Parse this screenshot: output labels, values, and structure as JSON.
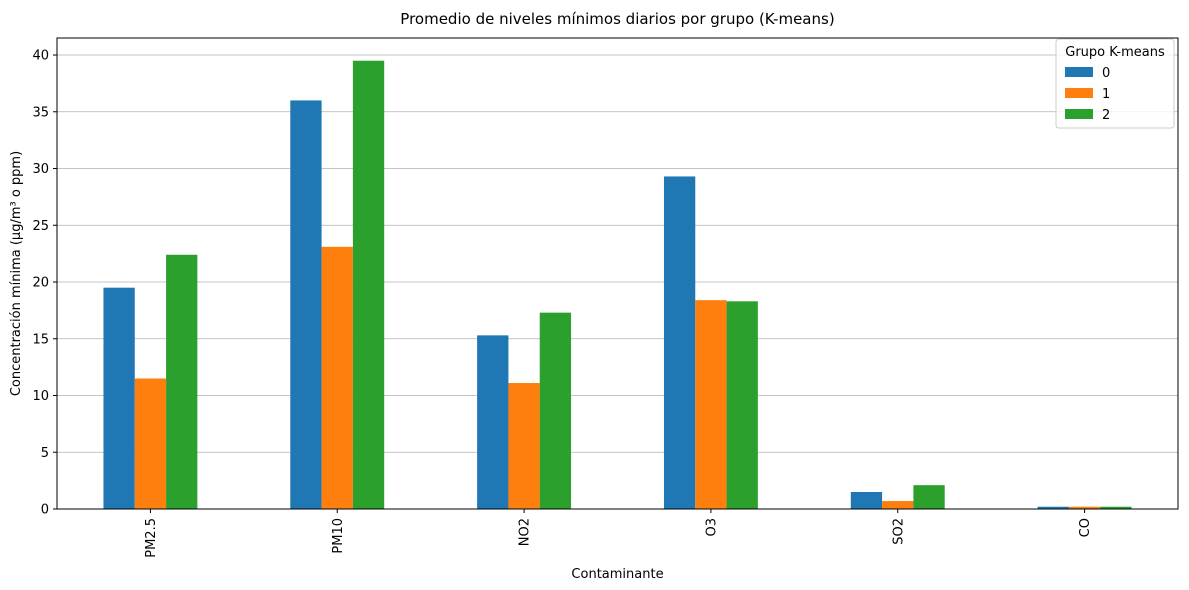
{
  "chart_data": {
    "type": "bar",
    "title": "Promedio de niveles mínimos diarios por grupo (K-means)",
    "xlabel": "Contaminante",
    "ylabel": "Concentración mínima (µg/m³ o ppm)",
    "categories": [
      "PM2.5",
      "PM10",
      "NO2",
      "O3",
      "SO2",
      "CO"
    ],
    "series": [
      {
        "name": "0",
        "color": "#1f77b4",
        "values": [
          19.5,
          36.0,
          15.3,
          29.3,
          1.5,
          0.2
        ]
      },
      {
        "name": "1",
        "color": "#ff7f0e",
        "values": [
          11.5,
          23.1,
          11.1,
          18.4,
          0.7,
          0.2
        ]
      },
      {
        "name": "2",
        "color": "#2ca02c",
        "values": [
          22.4,
          39.5,
          17.3,
          18.3,
          2.1,
          0.2
        ]
      }
    ],
    "ylim": [
      0,
      41.5
    ],
    "yticks": [
      0,
      5,
      10,
      15,
      20,
      25,
      30,
      35,
      40
    ],
    "grid": "y",
    "legend": {
      "title": "Grupo K-means",
      "placement": "top-right"
    }
  }
}
